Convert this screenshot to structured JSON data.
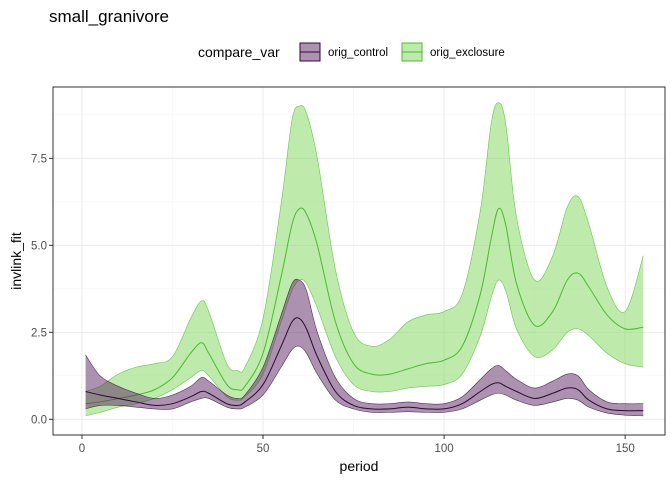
{
  "chart_data": {
    "type": "area",
    "title": "small_granivore",
    "xlabel": "period",
    "ylabel": "invlink_fit",
    "xlim": [
      -8,
      161
    ],
    "ylim": [
      -0.45,
      9.55
    ],
    "x_ticks": [
      0,
      50,
      100,
      150
    ],
    "x_tick_labels": [
      "0",
      "50",
      "100",
      "150"
    ],
    "y_ticks": [
      0,
      2.5,
      5,
      7.5
    ],
    "y_tick_labels": [
      "0.0",
      "2.5",
      "5.0",
      "7.5"
    ],
    "grid": true,
    "legend": {
      "position": "top",
      "title": "compare_var"
    },
    "series": [
      {
        "name": "orig_control",
        "fill": "#5c2463",
        "line": "#2d0a33",
        "x": [
          1,
          5,
          10,
          15,
          20,
          25,
          30,
          33,
          35,
          40,
          43,
          45,
          50,
          55,
          58,
          60,
          62,
          65,
          70,
          75,
          80,
          85,
          90,
          95,
          100,
          105,
          110,
          113,
          115,
          117,
          120,
          125,
          130,
          134,
          137,
          140,
          145,
          150,
          155
        ],
        "fit": [
          0.8,
          0.7,
          0.6,
          0.5,
          0.4,
          0.45,
          0.65,
          0.8,
          0.75,
          0.45,
          0.4,
          0.5,
          1.0,
          2.1,
          2.8,
          2.9,
          2.6,
          1.8,
          0.8,
          0.4,
          0.3,
          0.3,
          0.35,
          0.3,
          0.3,
          0.45,
          0.8,
          1.0,
          1.05,
          0.95,
          0.8,
          0.6,
          0.75,
          0.9,
          0.85,
          0.55,
          0.3,
          0.25,
          0.25
        ],
        "lower": [
          0.3,
          0.4,
          0.4,
          0.35,
          0.3,
          0.3,
          0.5,
          0.6,
          0.6,
          0.35,
          0.3,
          0.35,
          0.7,
          1.5,
          2.0,
          2.1,
          1.9,
          1.3,
          0.55,
          0.3,
          0.2,
          0.2,
          0.22,
          0.2,
          0.2,
          0.3,
          0.55,
          0.7,
          0.75,
          0.7,
          0.55,
          0.4,
          0.5,
          0.6,
          0.55,
          0.35,
          0.18,
          0.12,
          0.1
        ],
        "upper": [
          1.85,
          1.25,
          0.95,
          0.75,
          0.6,
          0.7,
          0.95,
          1.2,
          1.1,
          0.7,
          0.6,
          0.7,
          1.5,
          3.0,
          3.9,
          4.0,
          3.7,
          2.5,
          1.2,
          0.6,
          0.45,
          0.45,
          0.5,
          0.45,
          0.45,
          0.65,
          1.15,
          1.45,
          1.55,
          1.4,
          1.15,
          0.9,
          1.1,
          1.3,
          1.25,
          0.85,
          0.5,
          0.45,
          0.45
        ]
      },
      {
        "name": "orig_exclosure",
        "fill": "#7dd65a",
        "line": "#4cb830",
        "x": [
          1,
          5,
          10,
          15,
          20,
          25,
          30,
          33,
          35,
          40,
          43,
          45,
          50,
          55,
          58,
          60,
          62,
          65,
          70,
          75,
          80,
          85,
          90,
          95,
          100,
          105,
          110,
          113,
          115,
          117,
          120,
          125,
          130,
          134,
          137,
          140,
          145,
          150,
          155
        ],
        "fit": [
          0.45,
          0.5,
          0.6,
          0.7,
          0.85,
          1.2,
          1.9,
          2.2,
          1.9,
          1.0,
          0.85,
          0.95,
          1.9,
          4.1,
          5.6,
          6.05,
          5.9,
          5.0,
          2.8,
          1.6,
          1.3,
          1.3,
          1.45,
          1.6,
          1.7,
          2.1,
          3.6,
          5.2,
          6.05,
          5.6,
          3.9,
          2.7,
          3.1,
          4.0,
          4.2,
          3.8,
          3.0,
          2.6,
          2.65
        ],
        "lower": [
          0.1,
          0.2,
          0.35,
          0.45,
          0.6,
          0.85,
          1.2,
          1.4,
          1.25,
          0.65,
          0.55,
          0.65,
          1.3,
          2.8,
          3.7,
          4.0,
          3.9,
          3.2,
          1.8,
          1.0,
          0.8,
          0.8,
          0.9,
          0.95,
          1.0,
          1.3,
          2.4,
          3.5,
          4.0,
          3.7,
          2.6,
          1.8,
          2.0,
          2.5,
          2.6,
          2.4,
          1.9,
          1.6,
          1.5
        ],
        "upper": [
          0.8,
          0.95,
          1.3,
          1.5,
          1.6,
          1.8,
          2.9,
          3.4,
          3.1,
          1.6,
          1.4,
          1.5,
          2.9,
          6.2,
          8.6,
          9.0,
          8.8,
          7.5,
          4.3,
          2.5,
          2.1,
          2.3,
          2.8,
          3.0,
          3.1,
          3.6,
          6.0,
          8.5,
          9.1,
          8.5,
          5.8,
          4.0,
          4.7,
          6.1,
          6.4,
          5.6,
          3.8,
          3.1,
          4.7
        ]
      }
    ]
  }
}
